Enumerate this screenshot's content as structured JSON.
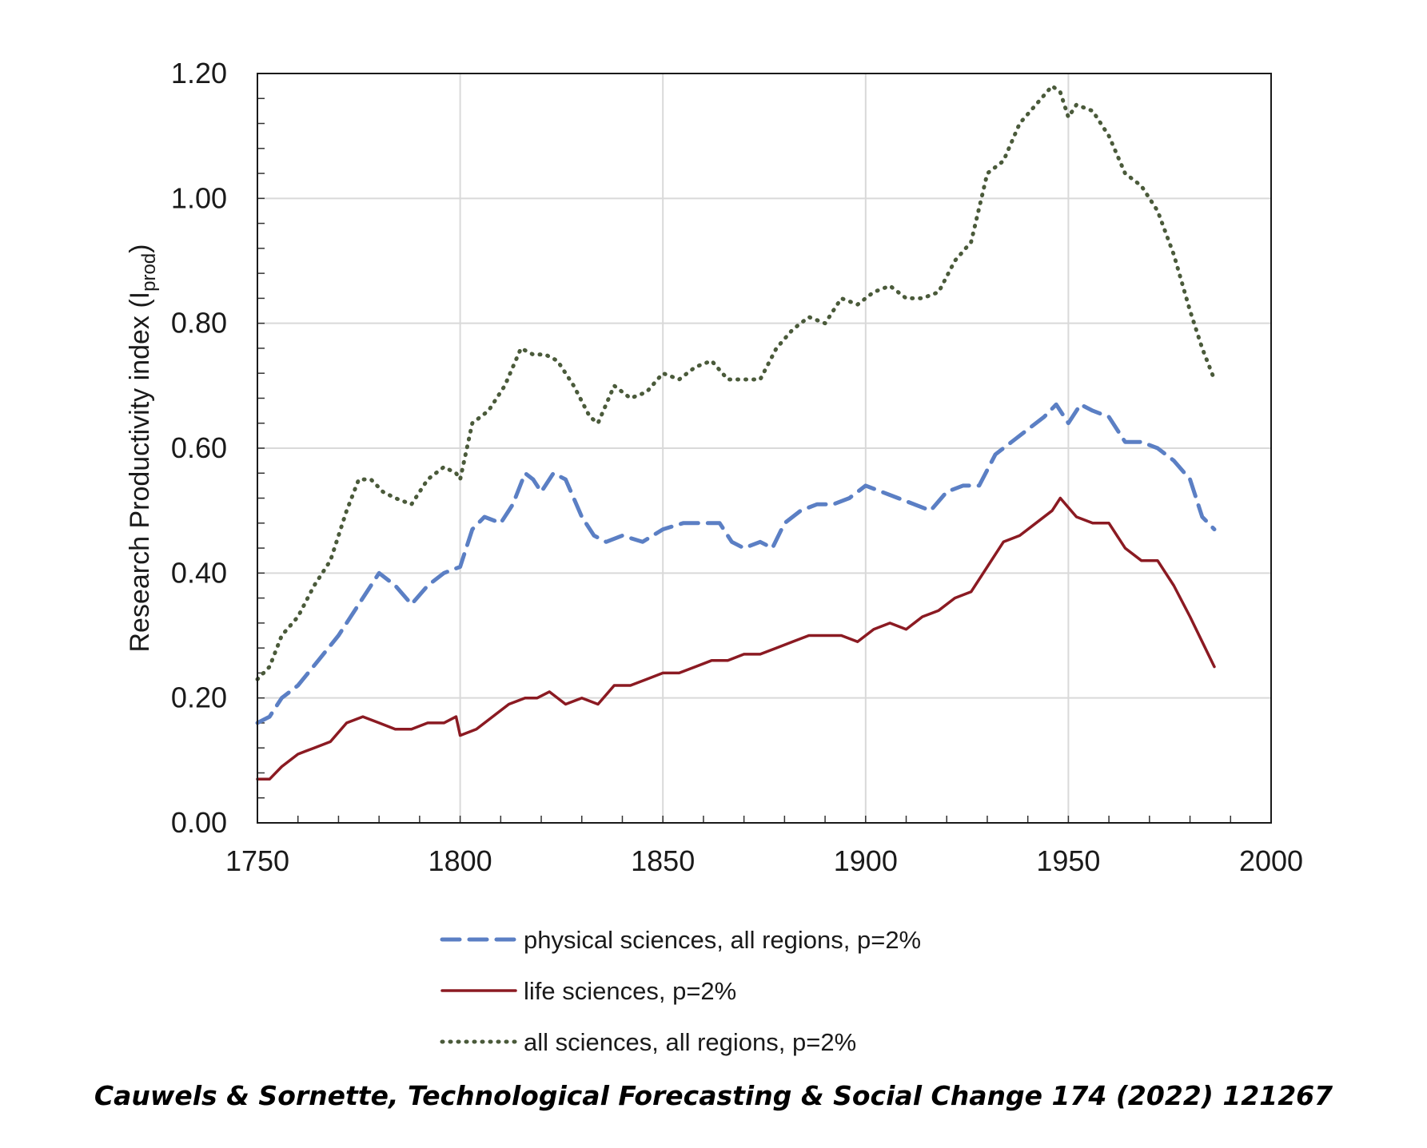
{
  "chart_data": {
    "type": "line",
    "title": "",
    "xlabel": "",
    "ylabel": "Research Productivity index (I",
    "ylabel_subscript": "prod",
    "ylabel_close": ")",
    "xlim": [
      1750,
      2000
    ],
    "ylim": [
      0.0,
      1.2
    ],
    "x_ticks": [
      1750,
      1800,
      1850,
      1900,
      1950,
      2000
    ],
    "x_tick_labels": [
      "1750",
      "1800",
      "1850",
      "1900",
      "1950",
      "2000"
    ],
    "y_ticks": [
      0.0,
      0.2,
      0.4,
      0.6,
      0.8,
      1.0,
      1.2
    ],
    "y_tick_labels": [
      "0.00",
      "0.20",
      "0.40",
      "0.60",
      "0.80",
      "1.00",
      "1.20"
    ],
    "grid": true,
    "legend_position": "below",
    "series": [
      {
        "name": "physical sciences, all regions, p=2%",
        "style": "dashed",
        "color": "#5b7fc4",
        "x": [
          1750,
          1753,
          1756,
          1760,
          1765,
          1770,
          1775,
          1780,
          1784,
          1788,
          1792,
          1796,
          1800,
          1803,
          1806,
          1810,
          1813,
          1816,
          1818,
          1820,
          1823,
          1826,
          1830,
          1833,
          1836,
          1840,
          1845,
          1850,
          1855,
          1860,
          1864,
          1867,
          1870,
          1874,
          1877,
          1880,
          1884,
          1888,
          1892,
          1896,
          1900,
          1904,
          1908,
          1912,
          1916,
          1920,
          1924,
          1928,
          1932,
          1936,
          1940,
          1944,
          1947,
          1950,
          1953,
          1956,
          1960,
          1964,
          1968,
          1972,
          1976,
          1980,
          1983,
          1986
        ],
        "y": [
          0.16,
          0.17,
          0.2,
          0.22,
          0.26,
          0.3,
          0.35,
          0.4,
          0.38,
          0.35,
          0.38,
          0.4,
          0.41,
          0.47,
          0.49,
          0.48,
          0.51,
          0.56,
          0.55,
          0.53,
          0.56,
          0.55,
          0.49,
          0.46,
          0.45,
          0.46,
          0.45,
          0.47,
          0.48,
          0.48,
          0.48,
          0.45,
          0.44,
          0.45,
          0.44,
          0.48,
          0.5,
          0.51,
          0.51,
          0.52,
          0.54,
          0.53,
          0.52,
          0.51,
          0.5,
          0.53,
          0.54,
          0.54,
          0.59,
          0.61,
          0.63,
          0.65,
          0.67,
          0.64,
          0.67,
          0.66,
          0.65,
          0.61,
          0.61,
          0.6,
          0.58,
          0.55,
          0.49,
          0.47
        ]
      },
      {
        "name": "life sciences, p=2%",
        "style": "solid",
        "color": "#8b1a22",
        "x": [
          1750,
          1753,
          1756,
          1760,
          1764,
          1768,
          1772,
          1776,
          1780,
          1784,
          1788,
          1792,
          1796,
          1799,
          1800,
          1804,
          1808,
          1812,
          1816,
          1819,
          1822,
          1826,
          1830,
          1834,
          1838,
          1842,
          1846,
          1850,
          1854,
          1858,
          1862,
          1866,
          1870,
          1874,
          1878,
          1882,
          1886,
          1890,
          1894,
          1898,
          1902,
          1906,
          1910,
          1914,
          1918,
          1922,
          1926,
          1930,
          1934,
          1938,
          1942,
          1946,
          1948,
          1952,
          1956,
          1960,
          1964,
          1968,
          1972,
          1976,
          1980,
          1983,
          1986
        ],
        "y": [
          0.07,
          0.07,
          0.09,
          0.11,
          0.12,
          0.13,
          0.16,
          0.17,
          0.16,
          0.15,
          0.15,
          0.16,
          0.16,
          0.17,
          0.14,
          0.15,
          0.17,
          0.19,
          0.2,
          0.2,
          0.21,
          0.19,
          0.2,
          0.19,
          0.22,
          0.22,
          0.23,
          0.24,
          0.24,
          0.25,
          0.26,
          0.26,
          0.27,
          0.27,
          0.28,
          0.29,
          0.3,
          0.3,
          0.3,
          0.29,
          0.31,
          0.32,
          0.31,
          0.33,
          0.34,
          0.36,
          0.37,
          0.41,
          0.45,
          0.46,
          0.48,
          0.5,
          0.52,
          0.49,
          0.48,
          0.48,
          0.44,
          0.42,
          0.42,
          0.38,
          0.33,
          0.29,
          0.25
        ]
      },
      {
        "name": "all sciences, all regions, p=2%",
        "style": "dotted",
        "color": "#4a5a3a",
        "x": [
          1750,
          1753,
          1756,
          1760,
          1764,
          1768,
          1772,
          1775,
          1778,
          1781,
          1784,
          1788,
          1792,
          1796,
          1799,
          1800,
          1803,
          1807,
          1811,
          1815,
          1818,
          1821,
          1824,
          1828,
          1832,
          1834,
          1838,
          1842,
          1846,
          1850,
          1854,
          1858,
          1862,
          1866,
          1870,
          1874,
          1878,
          1882,
          1886,
          1890,
          1894,
          1898,
          1902,
          1906,
          1910,
          1914,
          1918,
          1922,
          1926,
          1930,
          1934,
          1938,
          1942,
          1946,
          1948,
          1950,
          1952,
          1956,
          1960,
          1964,
          1968,
          1972,
          1976,
          1980,
          1983,
          1986
        ],
        "y": [
          0.23,
          0.25,
          0.3,
          0.33,
          0.38,
          0.42,
          0.5,
          0.55,
          0.55,
          0.53,
          0.52,
          0.51,
          0.55,
          0.57,
          0.56,
          0.55,
          0.64,
          0.66,
          0.7,
          0.76,
          0.75,
          0.75,
          0.74,
          0.7,
          0.65,
          0.64,
          0.7,
          0.68,
          0.69,
          0.72,
          0.71,
          0.73,
          0.74,
          0.71,
          0.71,
          0.71,
          0.76,
          0.79,
          0.81,
          0.8,
          0.84,
          0.83,
          0.85,
          0.86,
          0.84,
          0.84,
          0.85,
          0.9,
          0.93,
          1.04,
          1.06,
          1.12,
          1.15,
          1.18,
          1.17,
          1.13,
          1.15,
          1.14,
          1.1,
          1.04,
          1.02,
          0.98,
          0.91,
          0.82,
          0.76,
          0.71
        ]
      }
    ]
  },
  "citation": "Cauwels & Sornette, Technological Forecasting & Social Change 174 (2022) 121267"
}
